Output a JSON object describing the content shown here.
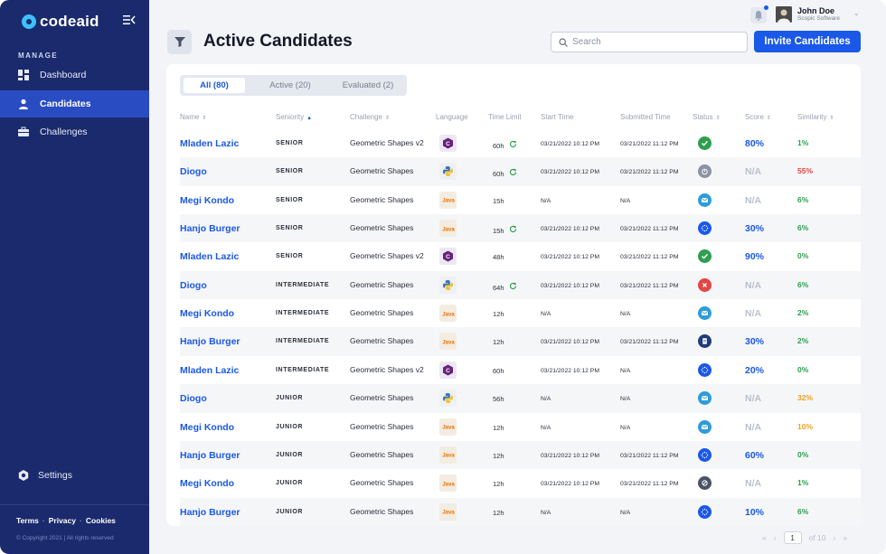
{
  "sidebar": {
    "brand": "codeaid",
    "section": "MANAGE",
    "items": [
      {
        "label": "Dashboard",
        "icon": "dashboard-icon"
      },
      {
        "label": "Candidates",
        "icon": "user-icon"
      },
      {
        "label": "Challenges",
        "icon": "briefcase-icon"
      }
    ],
    "settings": "Settings",
    "links": [
      "Terms",
      "Privacy",
      "Cookies"
    ],
    "copyright": "© Copyright 2021 | All rights reserved"
  },
  "header": {
    "title": "Active Candidates",
    "search_placeholder": "Search",
    "invite_label": "Invite Candidates",
    "user_name": "John Doe",
    "user_company": "Scopic Software"
  },
  "tabs": [
    "All (80)",
    "Active (20)",
    "Evaluated (2)"
  ],
  "columns": [
    "Name",
    "Seniority",
    "Challenge",
    "Language",
    "Time Limit",
    "Start Time",
    "Submitted Time",
    "Status",
    "Score",
    "Similarity"
  ],
  "colors": {
    "accent": "#1a58e8",
    "sidebar": "#1a2a6c",
    "success": "#2e9e4f",
    "danger": "#e44545",
    "warning": "#f0a020"
  },
  "rows": [
    {
      "name": "Mladen Lazic",
      "seniority": "SENIOR",
      "challenge": "Geometric Shapes v2",
      "language": "csharp",
      "time_limit": "60h",
      "limit_ok": true,
      "start": "03/21/2022 10:12 PM",
      "submitted": "03/21/2022 11:12 PM",
      "status": "completed",
      "score": "80%",
      "similarity": "1%",
      "sim_level": "low"
    },
    {
      "name": "Diogo",
      "seniority": "SENIOR",
      "challenge": "Geometric Shapes",
      "language": "python",
      "time_limit": "60h",
      "limit_ok": true,
      "start": "03/21/2022 10:12 PM",
      "submitted": "03/21/2022 11:12 PM",
      "status": "timer",
      "score": "N/A",
      "similarity": "55%",
      "sim_level": "high"
    },
    {
      "name": "Megi Kondo",
      "seniority": "SENIOR",
      "challenge": "Geometric Shapes",
      "language": "java",
      "time_limit": "15h",
      "limit_ok": false,
      "start": "N/A",
      "submitted": "N/A",
      "status": "invited",
      "score": "N/A",
      "similarity": "6%",
      "sim_level": "low"
    },
    {
      "name": "Hanjo Burger",
      "seniority": "SENIOR",
      "challenge": "Geometric Shapes",
      "language": "java",
      "time_limit": "15h",
      "limit_ok": true,
      "start": "03/21/2022 10:12 PM",
      "submitted": "03/21/2022 11:12 PM",
      "status": "evaluating",
      "score": "30%",
      "similarity": "6%",
      "sim_level": "low"
    },
    {
      "name": "Mladen Lazic",
      "seniority": "SENIOR",
      "challenge": "Geometric Shapes v2",
      "language": "csharp",
      "time_limit": "48h",
      "limit_ok": false,
      "start": "03/21/2022 10:12 PM",
      "submitted": "03/21/2022 11:12 PM",
      "status": "completed",
      "score": "90%",
      "similarity": "0%",
      "sim_level": "low"
    },
    {
      "name": "Diogo",
      "seniority": "INTERMEDIATE",
      "challenge": "Geometric Shapes",
      "language": "python",
      "time_limit": "64h",
      "limit_ok": true,
      "start": "03/21/2022 10:12 PM",
      "submitted": "03/21/2022 11:12 PM",
      "status": "rejected",
      "score": "N/A",
      "similarity": "6%",
      "sim_level": "low"
    },
    {
      "name": "Megi Kondo",
      "seniority": "INTERMEDIATE",
      "challenge": "Geometric Shapes",
      "language": "java",
      "time_limit": "12h",
      "limit_ok": false,
      "start": "N/A",
      "submitted": "N/A",
      "status": "invited",
      "score": "N/A",
      "similarity": "2%",
      "sim_level": "low"
    },
    {
      "name": "Hanjo Burger",
      "seniority": "INTERMEDIATE",
      "challenge": "Geometric Shapes",
      "language": "java",
      "time_limit": "12h",
      "limit_ok": false,
      "start": "03/21/2022 10:12 PM",
      "submitted": "03/21/2022 11:12 PM",
      "status": "document",
      "score": "30%",
      "similarity": "2%",
      "sim_level": "low"
    },
    {
      "name": "Mladen Lazic",
      "seniority": "INTERMEDIATE",
      "challenge": "Geometric Shapes v2",
      "language": "csharp",
      "time_limit": "60h",
      "limit_ok": false,
      "start": "03/21/2022 10:12 PM",
      "submitted": "N/A",
      "status": "evaluating",
      "score": "20%",
      "similarity": "0%",
      "sim_level": "low"
    },
    {
      "name": "Diogo",
      "seniority": "JUNIOR",
      "challenge": "Geometric Shapes",
      "language": "python",
      "time_limit": "56h",
      "limit_ok": false,
      "start": "N/A",
      "submitted": "N/A",
      "status": "invited",
      "score": "N/A",
      "similarity": "32%",
      "sim_level": "mid"
    },
    {
      "name": "Megi Kondo",
      "seniority": "JUNIOR",
      "challenge": "Geometric Shapes",
      "language": "java",
      "time_limit": "12h",
      "limit_ok": false,
      "start": "N/A",
      "submitted": "N/A",
      "status": "invited",
      "score": "N/A",
      "similarity": "10%",
      "sim_level": "mid"
    },
    {
      "name": "Hanjo Burger",
      "seniority": "JUNIOR",
      "challenge": "Geometric Shapes",
      "language": "java",
      "time_limit": "12h",
      "limit_ok": false,
      "start": "03/21/2022 10:12 PM",
      "submitted": "03/21/2022 11:12 PM",
      "status": "evaluating",
      "score": "60%",
      "similarity": "0%",
      "sim_level": "low"
    },
    {
      "name": "Megi Kondo",
      "seniority": "JUNIOR",
      "challenge": "Geometric Shapes",
      "language": "java",
      "time_limit": "12h",
      "limit_ok": false,
      "start": "03/21/2022 10:12 PM",
      "submitted": "03/21/2022 11:12 PM",
      "status": "cancelled",
      "score": "N/A",
      "similarity": "1%",
      "sim_level": "low"
    },
    {
      "name": "Hanjo Burger",
      "seniority": "JUNIOR",
      "challenge": "Geometric Shapes",
      "language": "java",
      "time_limit": "12h",
      "limit_ok": false,
      "start": "N/A",
      "submitted": "N/A",
      "status": "evaluating",
      "score": "10%",
      "similarity": "6%",
      "sim_level": "low"
    }
  ],
  "pagination": {
    "current": "1",
    "total_label": "of 10"
  }
}
